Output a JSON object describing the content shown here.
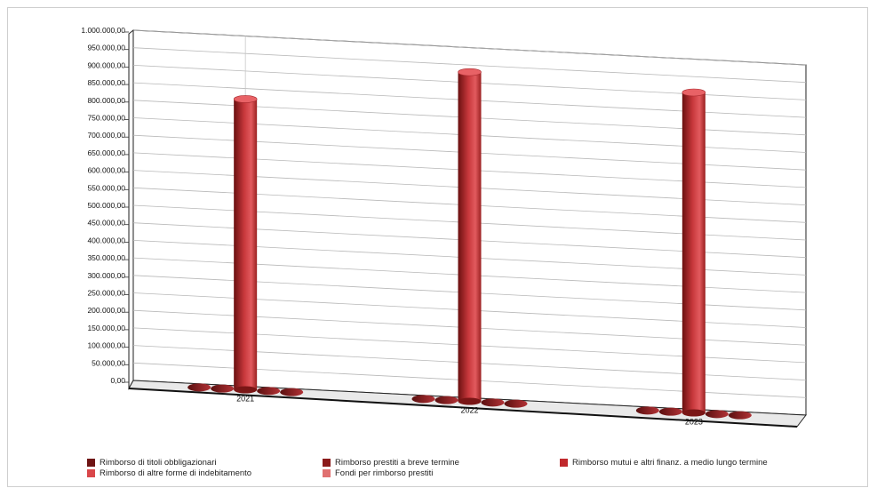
{
  "chart_data": {
    "type": "bar",
    "categories": [
      "2021",
      "2022",
      "2023"
    ],
    "series": [
      {
        "name": "Rimborso di titoli obbligazionari",
        "values": [
          0,
          0,
          0
        ],
        "color": "#6e1414"
      },
      {
        "name": "Rimborso prestiti a breve termine",
        "values": [
          0,
          0,
          0
        ],
        "color": "#8b1a1a"
      },
      {
        "name": "Rimborso mutui e altri finanz. a medio lungo termine",
        "values": [
          830000,
          940000,
          915000
        ],
        "color": "#c0282c"
      },
      {
        "name": "Rimborso di altre forme di indebitamento",
        "values": [
          0,
          0,
          0
        ],
        "color": "#d9474a"
      },
      {
        "name": "Fondi per rimborso  prestiti",
        "values": [
          0,
          0,
          0
        ],
        "color": "#e07070"
      }
    ],
    "ylim": [
      0,
      1000000
    ],
    "y_ticks": [
      "0,00",
      "50.000,00",
      "100.000,00",
      "150.000,00",
      "200.000,00",
      "250.000,00",
      "300.000,00",
      "350.000,00",
      "400.000,00",
      "450.000,00",
      "500.000,00",
      "550.000,00",
      "600.000,00",
      "650.000,00",
      "700.000,00",
      "750.000,00",
      "800.000,00",
      "850.000,00",
      "900.000,00",
      "950.000,00",
      "1.000.000,00"
    ],
    "grid": true,
    "legend_position": "bottom",
    "title": "",
    "xlabel": "",
    "ylabel": ""
  }
}
